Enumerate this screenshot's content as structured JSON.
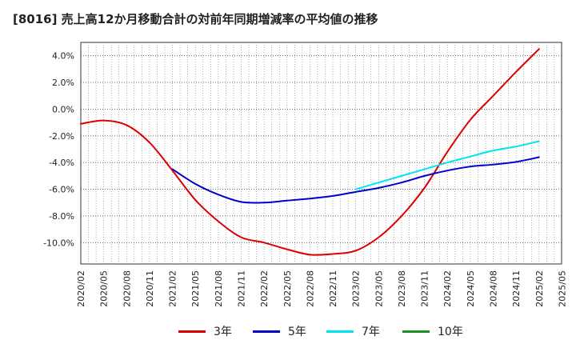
{
  "title": "[8016]  売上高12か月移動合計の対前年同期増減率の平均値の推移",
  "legend": [
    {
      "name": "3年",
      "color": "#dd0000"
    },
    {
      "name": "5年",
      "color": "#0000cc"
    },
    {
      "name": "7年",
      "color": "#00e5ee"
    },
    {
      "name": "10年",
      "color": "#228b22"
    }
  ],
  "chart_data": {
    "type": "line",
    "title": "[8016]  売上高12か月移動合計の対前年同期増減率の平均値の推移",
    "xlabel": "",
    "ylabel": "",
    "ylim": [
      -11.6,
      5.0
    ],
    "yticks": [
      4.0,
      2.0,
      0.0,
      -2.0,
      -4.0,
      -6.0,
      -8.0,
      -10.0
    ],
    "ytick_labels": [
      "4.0%",
      "2.0%",
      "0.0%",
      "-2.0%",
      "-4.0%",
      "-6.0%",
      "-8.0%",
      "-10.0%"
    ],
    "xticks": [
      "2020/02",
      "2020/05",
      "2020/08",
      "2020/11",
      "2021/02",
      "2021/05",
      "2021/08",
      "2021/11",
      "2022/02",
      "2022/05",
      "2022/08",
      "2022/11",
      "2023/02",
      "2023/05",
      "2023/08",
      "2023/11",
      "2024/02",
      "2024/05",
      "2024/08",
      "2024/11",
      "2025/02",
      "2025/05"
    ],
    "grid": true,
    "legend_position": "bottom",
    "series": [
      {
        "name": "3年",
        "color": "#dd0000",
        "points": [
          [
            "2020/02",
            -1.1
          ],
          [
            "2020/05",
            -0.85
          ],
          [
            "2020/08",
            -1.2
          ],
          [
            "2020/11",
            -2.5
          ],
          [
            "2021/02",
            -4.6
          ],
          [
            "2021/05",
            -6.8
          ],
          [
            "2021/08",
            -8.4
          ],
          [
            "2021/11",
            -9.6
          ],
          [
            "2022/02",
            -10.0
          ],
          [
            "2022/05",
            -10.5
          ],
          [
            "2022/08",
            -10.9
          ],
          [
            "2022/11",
            -10.85
          ],
          [
            "2023/02",
            -10.6
          ],
          [
            "2023/05",
            -9.6
          ],
          [
            "2023/08",
            -8.0
          ],
          [
            "2023/11",
            -5.9
          ],
          [
            "2024/02",
            -3.2
          ],
          [
            "2024/05",
            -0.8
          ],
          [
            "2024/08",
            1.0
          ],
          [
            "2024/11",
            2.8
          ],
          [
            "2025/02",
            4.5
          ]
        ]
      },
      {
        "name": "5年",
        "color": "#0000cc",
        "points": [
          [
            "2021/02",
            -4.5
          ],
          [
            "2021/05",
            -5.6
          ],
          [
            "2021/08",
            -6.4
          ],
          [
            "2021/11",
            -6.95
          ],
          [
            "2022/02",
            -7.0
          ],
          [
            "2022/05",
            -6.85
          ],
          [
            "2022/08",
            -6.7
          ],
          [
            "2022/11",
            -6.5
          ],
          [
            "2023/02",
            -6.2
          ],
          [
            "2023/05",
            -5.9
          ],
          [
            "2023/08",
            -5.5
          ],
          [
            "2023/11",
            -5.0
          ],
          [
            "2024/02",
            -4.6
          ],
          [
            "2024/05",
            -4.3
          ],
          [
            "2024/08",
            -4.15
          ],
          [
            "2024/11",
            -3.95
          ],
          [
            "2025/02",
            -3.6
          ]
        ]
      },
      {
        "name": "7年",
        "color": "#00e5ee",
        "points": [
          [
            "2023/02",
            -6.0
          ],
          [
            "2023/05",
            -5.5
          ],
          [
            "2023/08",
            -5.0
          ],
          [
            "2023/11",
            -4.5
          ],
          [
            "2024/02",
            -4.0
          ],
          [
            "2024/05",
            -3.55
          ],
          [
            "2024/08",
            -3.1
          ],
          [
            "2024/11",
            -2.8
          ],
          [
            "2025/02",
            -2.4
          ]
        ]
      },
      {
        "name": "10年",
        "color": "#228b22",
        "points": []
      }
    ]
  }
}
